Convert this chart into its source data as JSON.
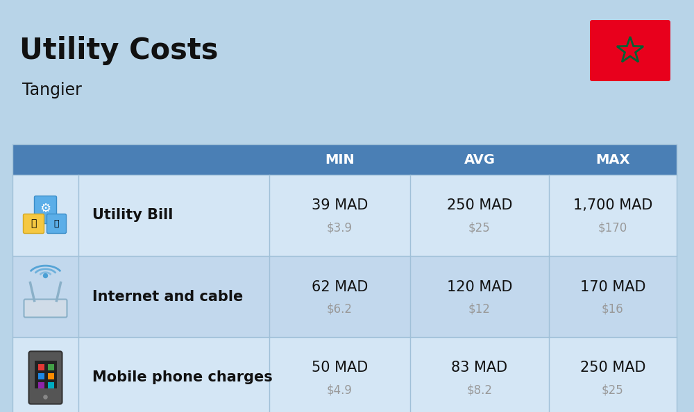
{
  "title": "Utility Costs",
  "subtitle": "Tangier",
  "background_color": "#b8d4e8",
  "header_bg_color": "#4a7fb5",
  "header_text_color": "#ffffff",
  "row_bg_color_1": "#d4e6f5",
  "row_bg_color_2": "#c2d8ed",
  "divider_color": "#a0c0d8",
  "text_color_dark": "#111111",
  "text_color_usd": "#999999",
  "headers": [
    "MIN",
    "AVG",
    "MAX"
  ],
  "rows": [
    {
      "label": "Utility Bill",
      "min_mad": "39 MAD",
      "min_usd": "$3.9",
      "avg_mad": "250 MAD",
      "avg_usd": "$25",
      "max_mad": "1,700 MAD",
      "max_usd": "$170",
      "icon": "utility"
    },
    {
      "label": "Internet and cable",
      "min_mad": "62 MAD",
      "min_usd": "$6.2",
      "avg_mad": "120 MAD",
      "avg_usd": "$12",
      "max_mad": "170 MAD",
      "max_usd": "$16",
      "icon": "internet"
    },
    {
      "label": "Mobile phone charges",
      "min_mad": "50 MAD",
      "min_usd": "$4.9",
      "avg_mad": "83 MAD",
      "avg_usd": "$8.2",
      "max_mad": "250 MAD",
      "max_usd": "$25",
      "icon": "mobile"
    }
  ],
  "flag_bg": "#e8001c",
  "flag_star_color": "#006233",
  "title_fontsize": 30,
  "subtitle_fontsize": 17,
  "header_fontsize": 14,
  "cell_mad_fontsize": 15,
  "cell_usd_fontsize": 12,
  "label_fontsize": 15,
  "fig_width": 10.0,
  "fig_height": 5.94,
  "dpi": 100
}
